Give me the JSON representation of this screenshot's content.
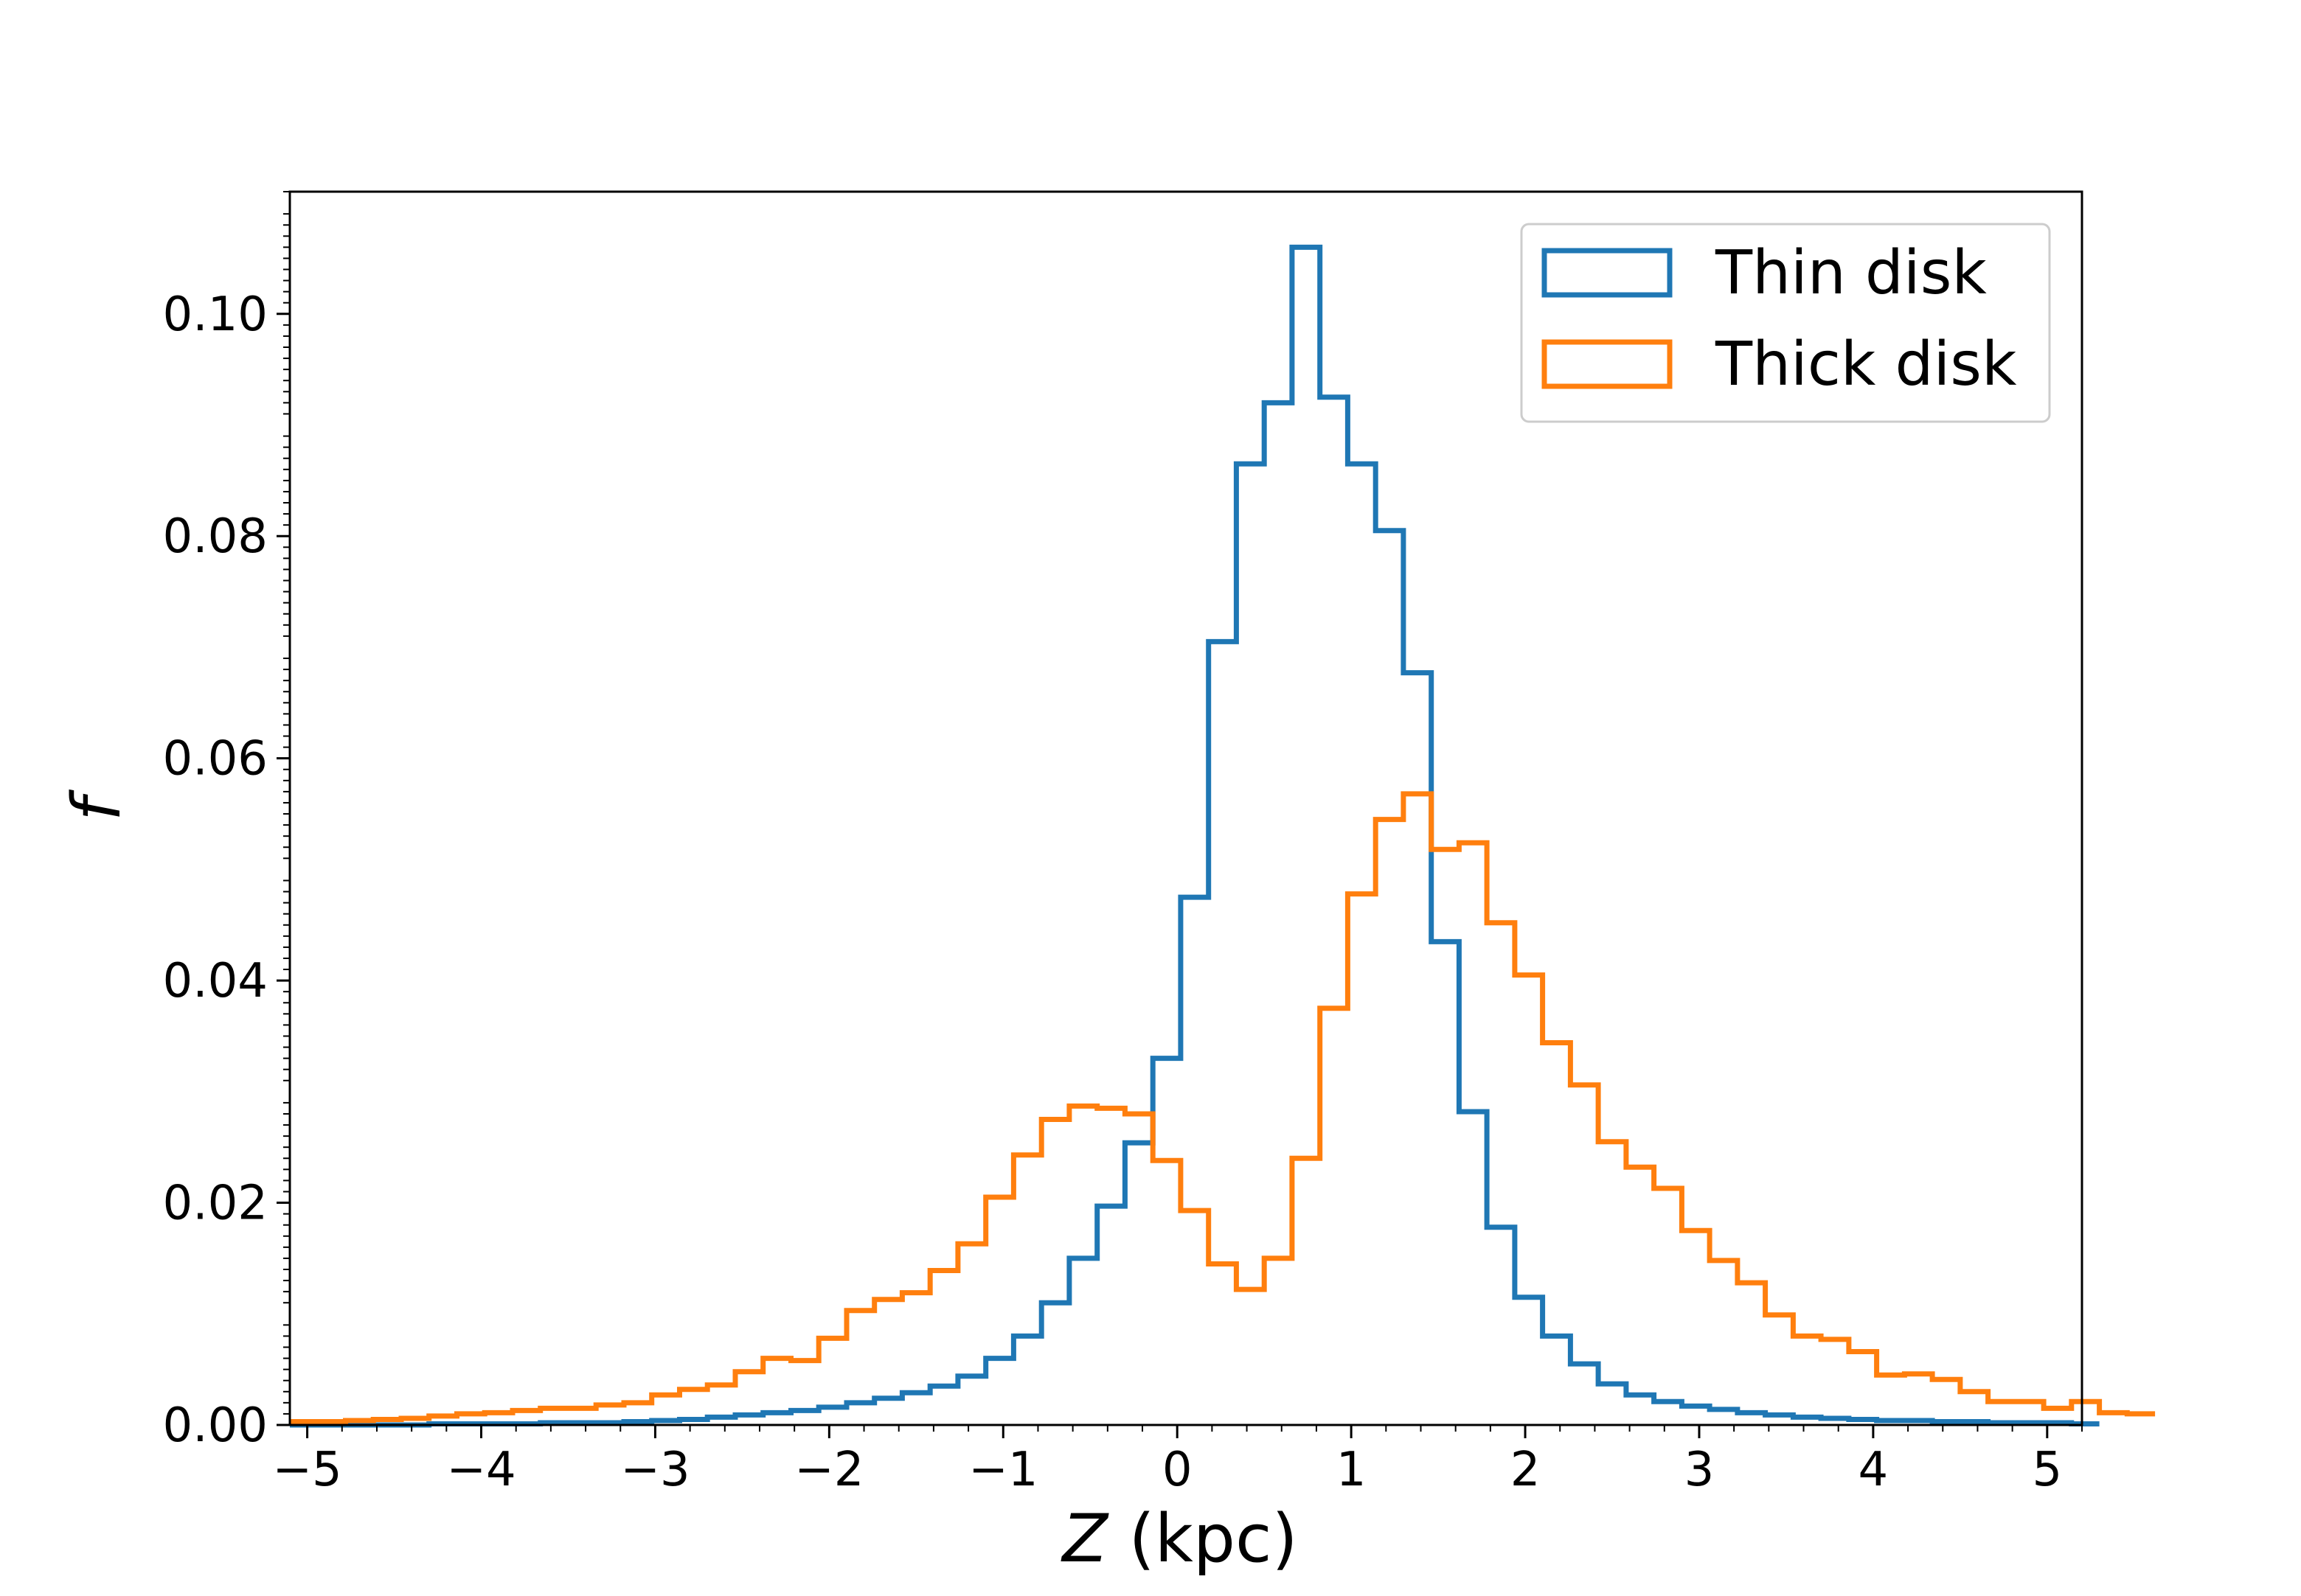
{
  "chart_data": {
    "type": "histogram",
    "title": "",
    "xlabel_var": "Z",
    "xlabel_unit": " (kpc)",
    "ylabel": "f",
    "xlim": [
      -5.1,
      5.2
    ],
    "ylim": [
      0.0,
      0.111
    ],
    "grid": false,
    "legend_placement": "top-right",
    "x_ticks": [
      -5,
      -4,
      -3,
      -2,
      -1,
      0,
      1,
      2,
      3,
      4,
      5
    ],
    "x_tick_labels": [
      "−5",
      "−4",
      "−3",
      "−2",
      "−1",
      "0",
      "1",
      "2",
      "3",
      "4",
      "5"
    ],
    "y_ticks": [
      0.0,
      0.02,
      0.04,
      0.06,
      0.08,
      0.1
    ],
    "y_tick_labels": [
      "0.00",
      "0.02",
      "0.04",
      "0.06",
      "0.08",
      "0.10"
    ],
    "bin_start": -5.1,
    "bin_width": 0.16,
    "series": [
      {
        "name": "Thin disk",
        "color": "#1f77b4",
        "values": [
          0.0,
          0.0,
          0.0,
          0.0,
          0.0,
          0.0001,
          0.0001,
          0.0001,
          0.0001,
          0.0002,
          0.0002,
          0.0002,
          0.0003,
          0.0004,
          0.0005,
          0.0007,
          0.0009,
          0.0011,
          0.0013,
          0.0016,
          0.002,
          0.0024,
          0.0029,
          0.0035,
          0.0044,
          0.006,
          0.008,
          0.011,
          0.015,
          0.0197,
          0.0254,
          0.033,
          0.0475,
          0.0705,
          0.0865,
          0.092,
          0.106,
          0.0925,
          0.0865,
          0.0805,
          0.0677,
          0.0435,
          0.0282,
          0.0178,
          0.0115,
          0.008,
          0.0055,
          0.0037,
          0.0027,
          0.0021,
          0.0017,
          0.0014,
          0.0011,
          0.0009,
          0.0007,
          0.0006,
          0.0005,
          0.0004,
          0.0004,
          0.0003,
          0.0003,
          0.0002,
          0.0002,
          0.0002,
          0.0001
        ]
      },
      {
        "name": "Thick disk",
        "color": "#ff7f0e",
        "values": [
          0.0003,
          0.0003,
          0.0004,
          0.0005,
          0.0006,
          0.0008,
          0.001,
          0.0011,
          0.0013,
          0.0015,
          0.0015,
          0.0018,
          0.002,
          0.0027,
          0.0032,
          0.0036,
          0.0048,
          0.006,
          0.0058,
          0.0078,
          0.0103,
          0.0113,
          0.0119,
          0.0139,
          0.0163,
          0.0205,
          0.0243,
          0.0275,
          0.0287,
          0.0285,
          0.028,
          0.0238,
          0.0193,
          0.0145,
          0.0122,
          0.015,
          0.024,
          0.0375,
          0.0478,
          0.0545,
          0.0568,
          0.0518,
          0.0524,
          0.0452,
          0.0405,
          0.0344,
          0.0306,
          0.0255,
          0.0232,
          0.0213,
          0.0175,
          0.0148,
          0.0128,
          0.0099,
          0.008,
          0.0077,
          0.0066,
          0.0045,
          0.0046,
          0.0041,
          0.003,
          0.0021,
          0.0021,
          0.0015,
          0.0021,
          0.0011,
          0.001
        ]
      }
    ]
  }
}
